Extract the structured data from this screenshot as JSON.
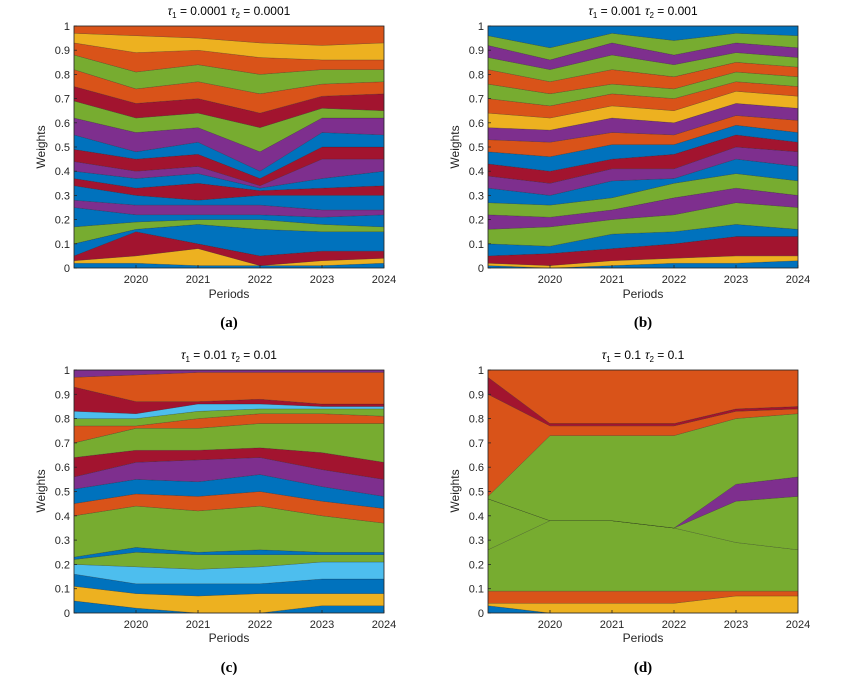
{
  "palette": [
    "#0072BD",
    "#D95319",
    "#EDB120",
    "#7E2F8E",
    "#77AC30",
    "#4DBEEE",
    "#A2142F"
  ],
  "chart_data": [
    {
      "type": "area",
      "label": "(a)",
      "title_parts": {
        "t1_sym": "τ",
        "t1_sub": "1",
        "t1_val": " = 0.0001",
        "t2_sym": "τ",
        "t2_sub": "2",
        "t2_val": " = 0.0001"
      },
      "xlabel": "Periods",
      "ylabel": "Weights",
      "x": [
        2019,
        2020,
        2021,
        2022,
        2023,
        2024
      ],
      "xlim": [
        2019,
        2024
      ],
      "xticks": [
        "2020",
        "2021",
        "2022",
        "2023",
        "2024"
      ],
      "ylim": [
        0,
        1
      ],
      "yticks": [
        "0",
        "0.1",
        "0.2",
        "0.3",
        "0.4",
        "0.5",
        "0.6",
        "0.7",
        "0.8",
        "0.9",
        "1"
      ],
      "boundaries": [
        [
          0.0,
          0.0,
          0.0,
          0.0,
          0.0,
          0.0
        ],
        [
          0.02,
          0.02,
          0.01,
          0.01,
          0.01,
          0.02
        ],
        [
          0.03,
          0.05,
          0.08,
          0.01,
          0.03,
          0.04
        ],
        [
          0.05,
          0.15,
          0.1,
          0.05,
          0.07,
          0.07
        ],
        [
          0.1,
          0.16,
          0.18,
          0.16,
          0.15,
          0.15
        ],
        [
          0.17,
          0.19,
          0.2,
          0.2,
          0.18,
          0.17
        ],
        [
          0.25,
          0.22,
          0.22,
          0.22,
          0.21,
          0.22
        ],
        [
          0.28,
          0.26,
          0.26,
          0.26,
          0.24,
          0.24
        ],
        [
          0.34,
          0.3,
          0.28,
          0.3,
          0.3,
          0.3
        ],
        [
          0.37,
          0.33,
          0.35,
          0.32,
          0.33,
          0.34
        ],
        [
          0.4,
          0.37,
          0.39,
          0.33,
          0.37,
          0.4
        ],
        [
          0.44,
          0.4,
          0.42,
          0.34,
          0.45,
          0.45
        ],
        [
          0.49,
          0.45,
          0.47,
          0.37,
          0.5,
          0.5
        ],
        [
          0.55,
          0.48,
          0.52,
          0.4,
          0.56,
          0.55
        ],
        [
          0.62,
          0.56,
          0.58,
          0.48,
          0.62,
          0.62
        ],
        [
          0.69,
          0.62,
          0.64,
          0.58,
          0.66,
          0.65
        ],
        [
          0.75,
          0.68,
          0.7,
          0.64,
          0.71,
          0.72
        ],
        [
          0.82,
          0.74,
          0.77,
          0.72,
          0.76,
          0.77
        ],
        [
          0.88,
          0.81,
          0.84,
          0.8,
          0.82,
          0.82
        ],
        [
          0.93,
          0.89,
          0.9,
          0.87,
          0.86,
          0.86
        ],
        [
          0.97,
          0.96,
          0.95,
          0.93,
          0.92,
          0.93
        ],
        [
          1.0,
          1.0,
          1.0,
          1.0,
          1.0,
          1.0
        ]
      ]
    },
    {
      "type": "area",
      "label": "(b)",
      "title_parts": {
        "t1_sym": "τ",
        "t1_sub": "1",
        "t1_val": " = 0.001",
        "t2_sym": "τ",
        "t2_sub": "2",
        "t2_val": " = 0.001"
      },
      "xlabel": "Periods",
      "ylabel": "Weights",
      "x": [
        2019,
        2020,
        2021,
        2022,
        2023,
        2024
      ],
      "xlim": [
        2019,
        2024
      ],
      "xticks": [
        "2020",
        "2021",
        "2022",
        "2023",
        "2024"
      ],
      "ylim": [
        0,
        1
      ],
      "yticks": [
        "0",
        "0.1",
        "0.2",
        "0.3",
        "0.4",
        "0.5",
        "0.6",
        "0.7",
        "0.8",
        "0.9",
        "1"
      ],
      "boundaries": [
        [
          0.0,
          0.0,
          0.0,
          0.0,
          0.0,
          0.0
        ],
        [
          0.01,
          0.0,
          0.01,
          0.02,
          0.02,
          0.03
        ],
        [
          0.02,
          0.01,
          0.03,
          0.04,
          0.05,
          0.05
        ],
        [
          0.05,
          0.06,
          0.08,
          0.1,
          0.13,
          0.13
        ],
        [
          0.1,
          0.09,
          0.14,
          0.15,
          0.18,
          0.16
        ],
        [
          0.16,
          0.17,
          0.2,
          0.22,
          0.27,
          0.25
        ],
        [
          0.22,
          0.21,
          0.24,
          0.29,
          0.33,
          0.3
        ],
        [
          0.27,
          0.26,
          0.29,
          0.35,
          0.39,
          0.36
        ],
        [
          0.33,
          0.3,
          0.36,
          0.37,
          0.45,
          0.42
        ],
        [
          0.38,
          0.35,
          0.41,
          0.41,
          0.5,
          0.48
        ],
        [
          0.43,
          0.4,
          0.45,
          0.47,
          0.55,
          0.52
        ],
        [
          0.48,
          0.46,
          0.51,
          0.51,
          0.59,
          0.56
        ],
        [
          0.53,
          0.52,
          0.56,
          0.55,
          0.63,
          0.61
        ],
        [
          0.58,
          0.57,
          0.62,
          0.6,
          0.68,
          0.66
        ],
        [
          0.64,
          0.62,
          0.67,
          0.65,
          0.73,
          0.71
        ],
        [
          0.7,
          0.67,
          0.72,
          0.7,
          0.77,
          0.75
        ],
        [
          0.76,
          0.72,
          0.76,
          0.74,
          0.81,
          0.79
        ],
        [
          0.82,
          0.77,
          0.82,
          0.79,
          0.85,
          0.83
        ],
        [
          0.87,
          0.82,
          0.88,
          0.84,
          0.89,
          0.87
        ],
        [
          0.92,
          0.86,
          0.93,
          0.88,
          0.93,
          0.91
        ],
        [
          0.96,
          0.91,
          0.97,
          0.94,
          0.97,
          0.96
        ],
        [
          1.0,
          1.0,
          1.0,
          1.0,
          1.0,
          1.0
        ]
      ]
    },
    {
      "type": "area",
      "label": "(c)",
      "title_parts": {
        "t1_sym": "τ",
        "t1_sub": "1",
        "t1_val": " = 0.01",
        "t2_sym": "τ",
        "t2_sub": "2",
        "t2_val": " = 0.01"
      },
      "xlabel": "Periods",
      "ylabel": "Weights",
      "x": [
        2019,
        2020,
        2021,
        2022,
        2023,
        2024
      ],
      "xlim": [
        2019,
        2024
      ],
      "xticks": [
        "2020",
        "2021",
        "2022",
        "2023",
        "2024"
      ],
      "ylim": [
        0,
        1
      ],
      "yticks": [
        "0",
        "0.1",
        "0.2",
        "0.3",
        "0.4",
        "0.5",
        "0.6",
        "0.7",
        "0.8",
        "0.9",
        "1"
      ],
      "boundaries": [
        [
          0.0,
          0.0,
          0.0,
          0.0,
          0.0,
          0.0
        ],
        [
          0.05,
          0.02,
          0.0,
          0.0,
          0.03,
          0.03
        ],
        [
          0.11,
          0.08,
          0.07,
          0.08,
          0.08,
          0.08
        ],
        [
          0.16,
          0.12,
          0.12,
          0.12,
          0.14,
          0.14
        ],
        [
          0.2,
          0.19,
          0.18,
          0.19,
          0.21,
          0.21
        ],
        [
          0.22,
          0.25,
          0.24,
          0.24,
          0.24,
          0.24
        ],
        [
          0.23,
          0.27,
          0.25,
          0.26,
          0.25,
          0.25
        ],
        [
          0.4,
          0.44,
          0.42,
          0.44,
          0.4,
          0.37
        ],
        [
          0.45,
          0.49,
          0.48,
          0.5,
          0.46,
          0.43
        ],
        [
          0.51,
          0.55,
          0.54,
          0.57,
          0.52,
          0.48
        ],
        [
          0.56,
          0.62,
          0.63,
          0.64,
          0.59,
          0.55
        ],
        [
          0.64,
          0.67,
          0.67,
          0.68,
          0.66,
          0.62
        ],
        [
          0.7,
          0.76,
          0.76,
          0.78,
          0.78,
          0.78
        ],
        [
          0.77,
          0.77,
          0.8,
          0.82,
          0.82,
          0.81
        ],
        [
          0.8,
          0.8,
          0.83,
          0.84,
          0.84,
          0.84
        ],
        [
          0.83,
          0.82,
          0.86,
          0.86,
          0.85,
          0.85
        ],
        [
          0.93,
          0.87,
          0.87,
          0.88,
          0.86,
          0.86
        ],
        [
          0.97,
          0.98,
          0.99,
          0.99,
          0.99,
          0.99
        ],
        [
          1.0,
          1.0,
          1.0,
          1.0,
          1.0,
          1.0
        ]
      ]
    },
    {
      "type": "area",
      "label": "(d)",
      "title_parts": {
        "t1_sym": "τ",
        "t1_sub": "1",
        "t1_val": " = 0.1",
        "t2_sym": "τ",
        "t2_sub": "2",
        "t2_val": " = 0.1"
      },
      "xlabel": "Periods",
      "ylabel": "Weights",
      "x": [
        2019,
        2020,
        2021,
        2022,
        2023,
        2024
      ],
      "xlim": [
        2019,
        2024
      ],
      "xticks": [
        "2020",
        "2021",
        "2022",
        "2023",
        "2024"
      ],
      "ylim": [
        0,
        1
      ],
      "yticks": [
        "0",
        "0.1",
        "0.2",
        "0.3",
        "0.4",
        "0.5",
        "0.6",
        "0.7",
        "0.8",
        "0.9",
        "1"
      ],
      "boundaries": [
        [
          0.0,
          0.0,
          0.0,
          0.0,
          0.0,
          0.0
        ],
        [
          0.03,
          0.0,
          0.0,
          0.0,
          0.0,
          0.0
        ],
        [
          0.04,
          0.04,
          0.04,
          0.04,
          0.07,
          0.07
        ],
        [
          0.09,
          0.09,
          0.09,
          0.09,
          0.09,
          0.09
        ],
        [
          0.26,
          0.38,
          0.38,
          0.35,
          0.29,
          0.26
        ],
        [
          0.47,
          0.38,
          0.38,
          0.35,
          0.46,
          0.48
        ],
        [
          0.47,
          0.38,
          0.38,
          0.35,
          0.53,
          0.56
        ],
        [
          0.48,
          0.73,
          0.73,
          0.73,
          0.8,
          0.82
        ],
        [
          0.9,
          0.77,
          0.77,
          0.77,
          0.83,
          0.84
        ],
        [
          0.97,
          0.78,
          0.78,
          0.78,
          0.84,
          0.85
        ],
        [
          1.0,
          1.0,
          1.0,
          1.0,
          1.0,
          1.0
        ]
      ]
    }
  ],
  "band_colors": [
    [
      0,
      2,
      6,
      0,
      4,
      0,
      3,
      0,
      6,
      0,
      3,
      6,
      0,
      3,
      4,
      6,
      1,
      4,
      1,
      2,
      1
    ],
    [
      0,
      2,
      6,
      0,
      4,
      3,
      4,
      0,
      3,
      6,
      0,
      1,
      3,
      2,
      1,
      4,
      1,
      4,
      3,
      4,
      0
    ],
    [
      0,
      2,
      0,
      5,
      4,
      0,
      4,
      1,
      0,
      3,
      6,
      4,
      1,
      4,
      5,
      6,
      1,
      3
    ],
    [
      0,
      2,
      1,
      4,
      4,
      3,
      4,
      1,
      6,
      1
    ]
  ]
}
